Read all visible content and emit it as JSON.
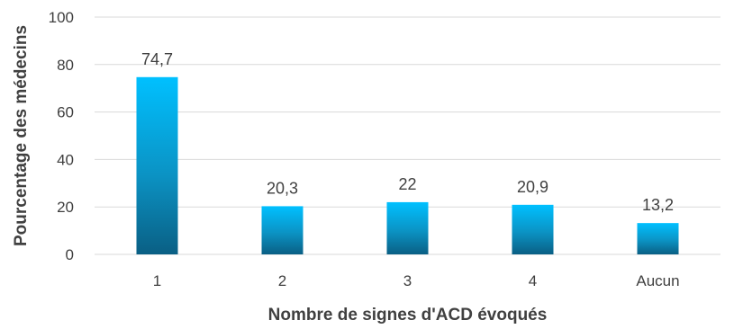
{
  "chart_data": {
    "type": "bar",
    "categories": [
      "1",
      "2",
      "3",
      "4",
      "Aucun"
    ],
    "values": [
      74.7,
      20.3,
      22,
      20.9,
      13.2
    ],
    "value_labels": [
      "74,7",
      "20,3",
      "22",
      "20,9",
      "13,2"
    ],
    "xlabel": "Nombre de signes d'ACD évoqués",
    "ylabel": "Pourcentage des médecins",
    "ylim": [
      0,
      100
    ],
    "yticks": [
      0,
      20,
      40,
      60,
      80,
      100
    ],
    "grid": true,
    "legend": "none",
    "colors": {
      "bar_top": "#00c0ff",
      "bar_mid": "#0b93c4",
      "bar_bottom": "#0a5f84",
      "grid": "#d9d9d9",
      "text": "#404040"
    }
  }
}
